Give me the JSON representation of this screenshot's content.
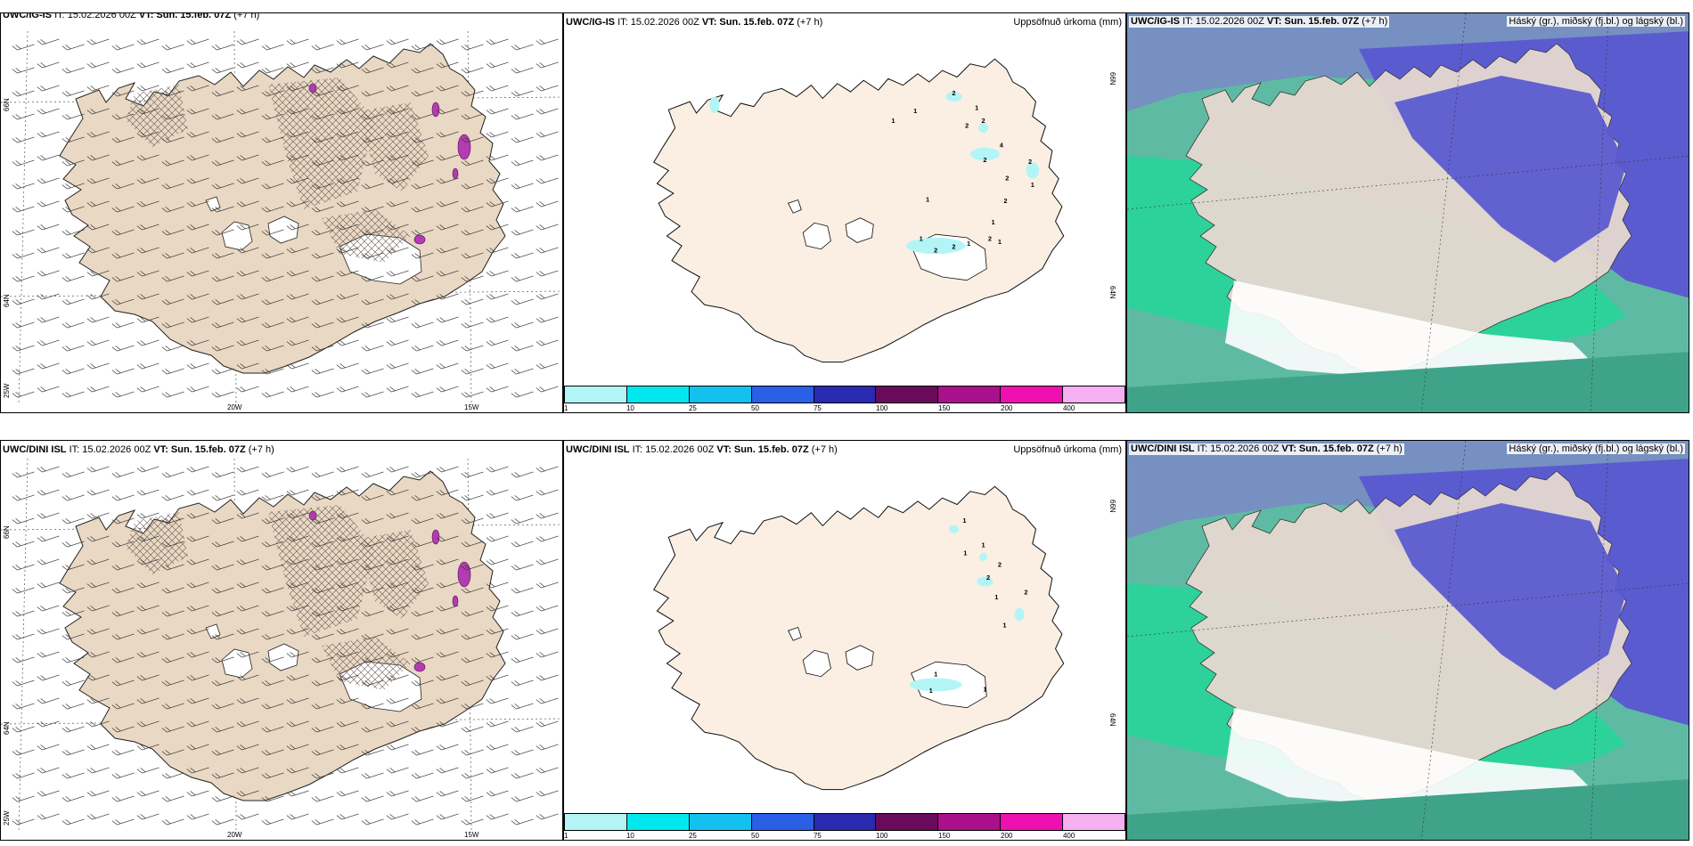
{
  "rows": [
    {
      "wind": {
        "header_model": "UWC/IG-IS",
        "header_it": "IT: 15.02.2026 00Z",
        "header_vt": "VT: Sun. 15.feb. 07Z",
        "header_lead": "(+7 h)"
      },
      "precip": {
        "header_model": "UWC/IG-IS",
        "header_it": "IT: 15.02.2026 00Z",
        "header_vt": "VT: Sun. 15.feb. 07Z",
        "header_lead": "(+7 h)",
        "title": "Uppsöfnuð úrkoma (mm)"
      },
      "cloud": {
        "header_model": "UWC/IG-IS",
        "header_it": "IT: 15.02.2026 00Z",
        "header_vt": "VT: Sun. 15.feb. 07Z",
        "header_lead": "(+7 h)",
        "title": "Háský (gr.), miðský (fj.bl.) og lágský (bl.)"
      }
    },
    {
      "wind": {
        "header_model": "UWC/DINI ISL",
        "header_it": "IT: 15.02.2026 00Z",
        "header_vt": "VT: Sun. 15.feb. 07Z",
        "header_lead": "(+7 h)"
      },
      "precip": {
        "header_model": "UWC/DINI ISL",
        "header_it": "IT: 15.02.2026 00Z",
        "header_vt": "VT: Sun. 15.feb. 07Z",
        "header_lead": "(+7 h)",
        "title": "Uppsöfnuð úrkoma (mm)"
      },
      "cloud": {
        "header_model": "UWC/DINI ISL",
        "header_it": "IT: 15.02.2026 00Z",
        "header_vt": "VT: Sun. 15.feb. 07Z",
        "header_lead": "(+7 h)",
        "title": "Háský (gr.), miðský (fj.bl.) og lágský (bl.)"
      }
    }
  ],
  "axes": {
    "lat_labels": [
      "66N",
      "64N"
    ],
    "lon_labels": [
      "25W",
      "20W",
      "15W"
    ]
  },
  "colorbar": {
    "ticks": [
      "1",
      "10",
      "25",
      "50",
      "75",
      "100",
      "150",
      "200",
      "400"
    ],
    "colors": [
      "#b3f5f7",
      "#00e8ee",
      "#14c0ee",
      "#2a60e6",
      "#2a2ab0",
      "#6a0a5a",
      "#a8108c",
      "#ee10b0",
      "#f4b0f0"
    ]
  },
  "precip_labels": {
    "top": [
      "2",
      "1",
      "1",
      "2",
      "2",
      "1",
      "4",
      "2",
      "2",
      "2",
      "1",
      "2",
      "1",
      "1",
      "1",
      "2",
      "2",
      "2",
      "1",
      "1"
    ],
    "bottom": [
      "1",
      "1",
      "1",
      "2",
      "2",
      "2",
      "1",
      "1",
      "1",
      "1",
      "1"
    ]
  },
  "palette": {
    "land": "#e9d8c3",
    "land_precip": "#fbefe3",
    "ocean_cloud": "#5fbaa3",
    "low_cloud": "#5b5bd0",
    "mid_cloud": "#20d898",
    "snow_white": "#ffffff"
  }
}
